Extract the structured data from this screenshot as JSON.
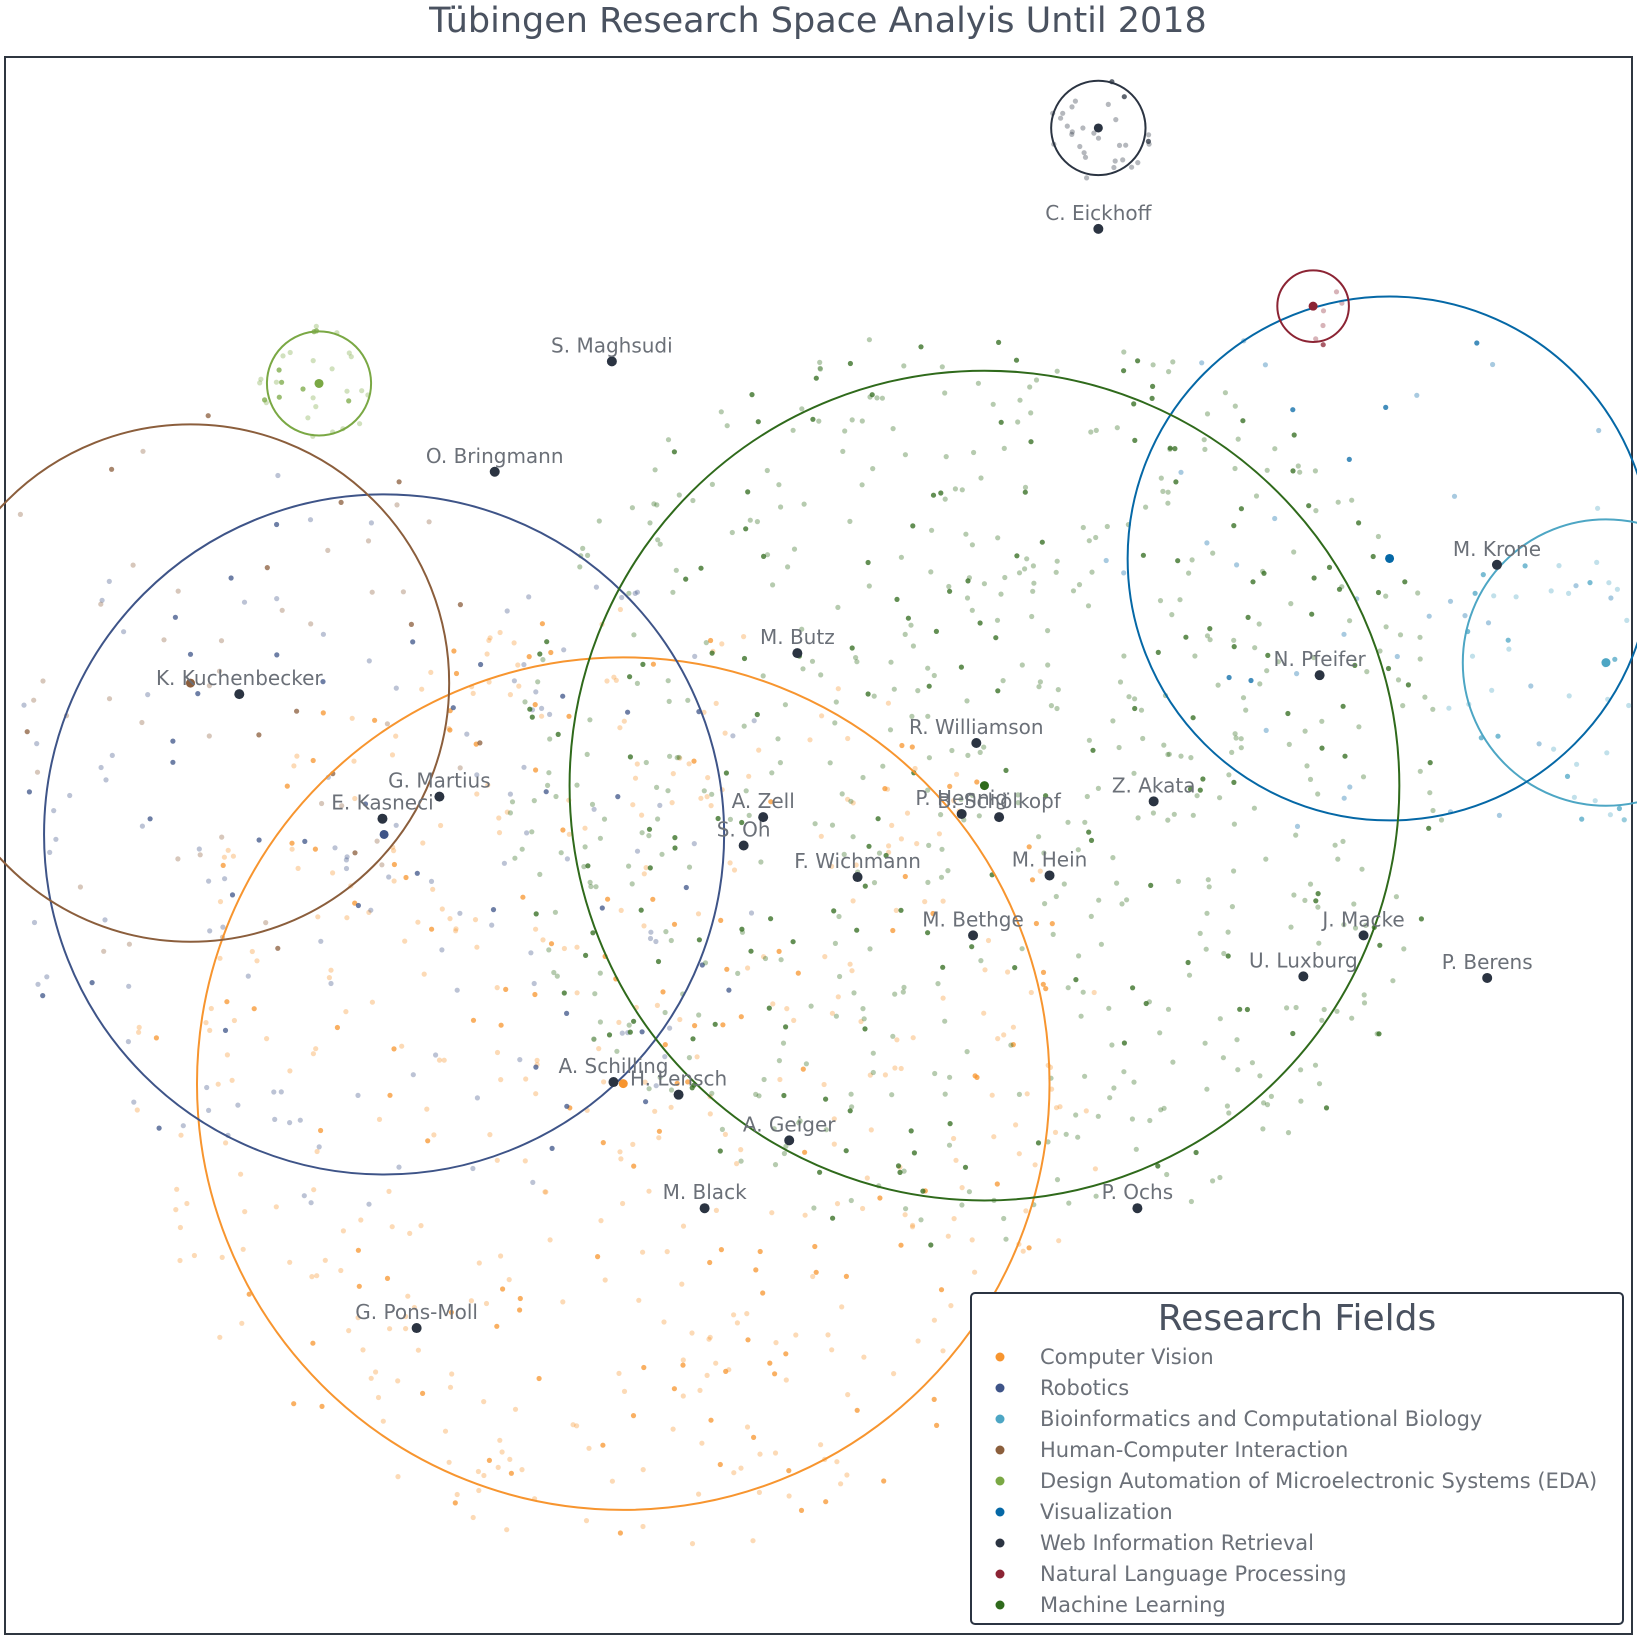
{
  "chart_data": {
    "type": "scatter",
    "title": "Tübingen Research Space Analyis Until 2018",
    "xlim": [
      0,
      1000
    ],
    "ylim": [
      0,
      1000
    ],
    "grid": false,
    "legend": {
      "title": "Research Fields",
      "placement": "bottom-right",
      "entries": [
        {
          "name": "Computer Vision",
          "color": "#f7952f"
        },
        {
          "name": "Robotics",
          "color": "#3e5488"
        },
        {
          "name": "Bioinformatics and Computational Biology",
          "color": "#4da6c4"
        },
        {
          "name": "Human-Computer Interaction",
          "color": "#8b5e3c"
        },
        {
          "name": "Design Automation of Microelectronic Systems (EDA)",
          "color": "#7aa844"
        },
        {
          "name": "Visualization",
          "color": "#0568a6"
        },
        {
          "name": "Web Information Retrieval",
          "color": "#2b3442"
        },
        {
          "name": "Natural Language Processing",
          "color": "#8c2434"
        },
        {
          "name": "Machine Learning",
          "color": "#2f6a1b"
        }
      ]
    },
    "field_circles": [
      {
        "field": "Computer Vision",
        "cx": 380,
        "cy": 349,
        "r": 262
      },
      {
        "field": "Robotics",
        "cx": 233,
        "cy": 507,
        "r": 209
      },
      {
        "field": "Bioinformatics and Computational Biology",
        "cx": 984,
        "cy": 616,
        "r": 88
      },
      {
        "field": "Human-Computer Interaction",
        "cx": 114,
        "cy": 603,
        "r": 159
      },
      {
        "field": "Design Automation of Microelectronic Systems (EDA)",
        "cx": 193,
        "cy": 793,
        "r": 32
      },
      {
        "field": "Visualization",
        "cx": 851,
        "cy": 682,
        "r": 161
      },
      {
        "field": "Web Information Retrieval",
        "cx": 672,
        "cy": 955,
        "r": 29
      },
      {
        "field": "Natural Language Processing",
        "cx": 804,
        "cy": 842,
        "r": 22
      },
      {
        "field": "Machine Learning",
        "cx": 602,
        "cy": 538,
        "r": 255
      }
    ],
    "researchers": [
      {
        "name": "C. Eickhoff",
        "x": 672,
        "y": 891
      },
      {
        "name": "S. Maghsudi",
        "x": 373,
        "y": 807
      },
      {
        "name": "O. Bringmann",
        "x": 301,
        "y": 737
      },
      {
        "name": "M. Krone",
        "x": 917,
        "y": 678
      },
      {
        "name": "K. Kuchenbecker",
        "x": 144,
        "y": 596
      },
      {
        "name": "M. Butz",
        "x": 487,
        "y": 622
      },
      {
        "name": "N. Pfeifer",
        "x": 808,
        "y": 608
      },
      {
        "name": "R. Williamson",
        "x": 597,
        "y": 565
      },
      {
        "name": "G. Martius",
        "x": 267,
        "y": 531
      },
      {
        "name": "E. Kasneci",
        "x": 232,
        "y": 517
      },
      {
        "name": "A. Zell",
        "x": 466,
        "y": 518
      },
      {
        "name": "P. Hennig",
        "x": 588,
        "y": 520
      },
      {
        "name": "B. Schölkopf",
        "x": 611,
        "y": 518
      },
      {
        "name": "Z. Akata",
        "x": 706,
        "y": 528
      },
      {
        "name": "S. Oh",
        "x": 454,
        "y": 500
      },
      {
        "name": "F. Wichmann",
        "x": 524,
        "y": 480
      },
      {
        "name": "M. Hein",
        "x": 642,
        "y": 481
      },
      {
        "name": "M. Bethge",
        "x": 595,
        "y": 443
      },
      {
        "name": "J. Macke",
        "x": 835,
        "y": 443
      },
      {
        "name": "U. Luxburg",
        "x": 798,
        "y": 417
      },
      {
        "name": "P. Berens",
        "x": 911,
        "y": 416
      },
      {
        "name": "A. Schilling",
        "x": 374,
        "y": 350
      },
      {
        "name": "H. Lensch",
        "x": 414,
        "y": 342
      },
      {
        "name": "A. Geiger",
        "x": 482,
        "y": 313
      },
      {
        "name": "M. Black",
        "x": 430,
        "y": 270
      },
      {
        "name": "P. Ochs",
        "x": 696,
        "y": 270
      },
      {
        "name": "G. Pons-Moll",
        "x": 253,
        "y": 194
      }
    ]
  }
}
